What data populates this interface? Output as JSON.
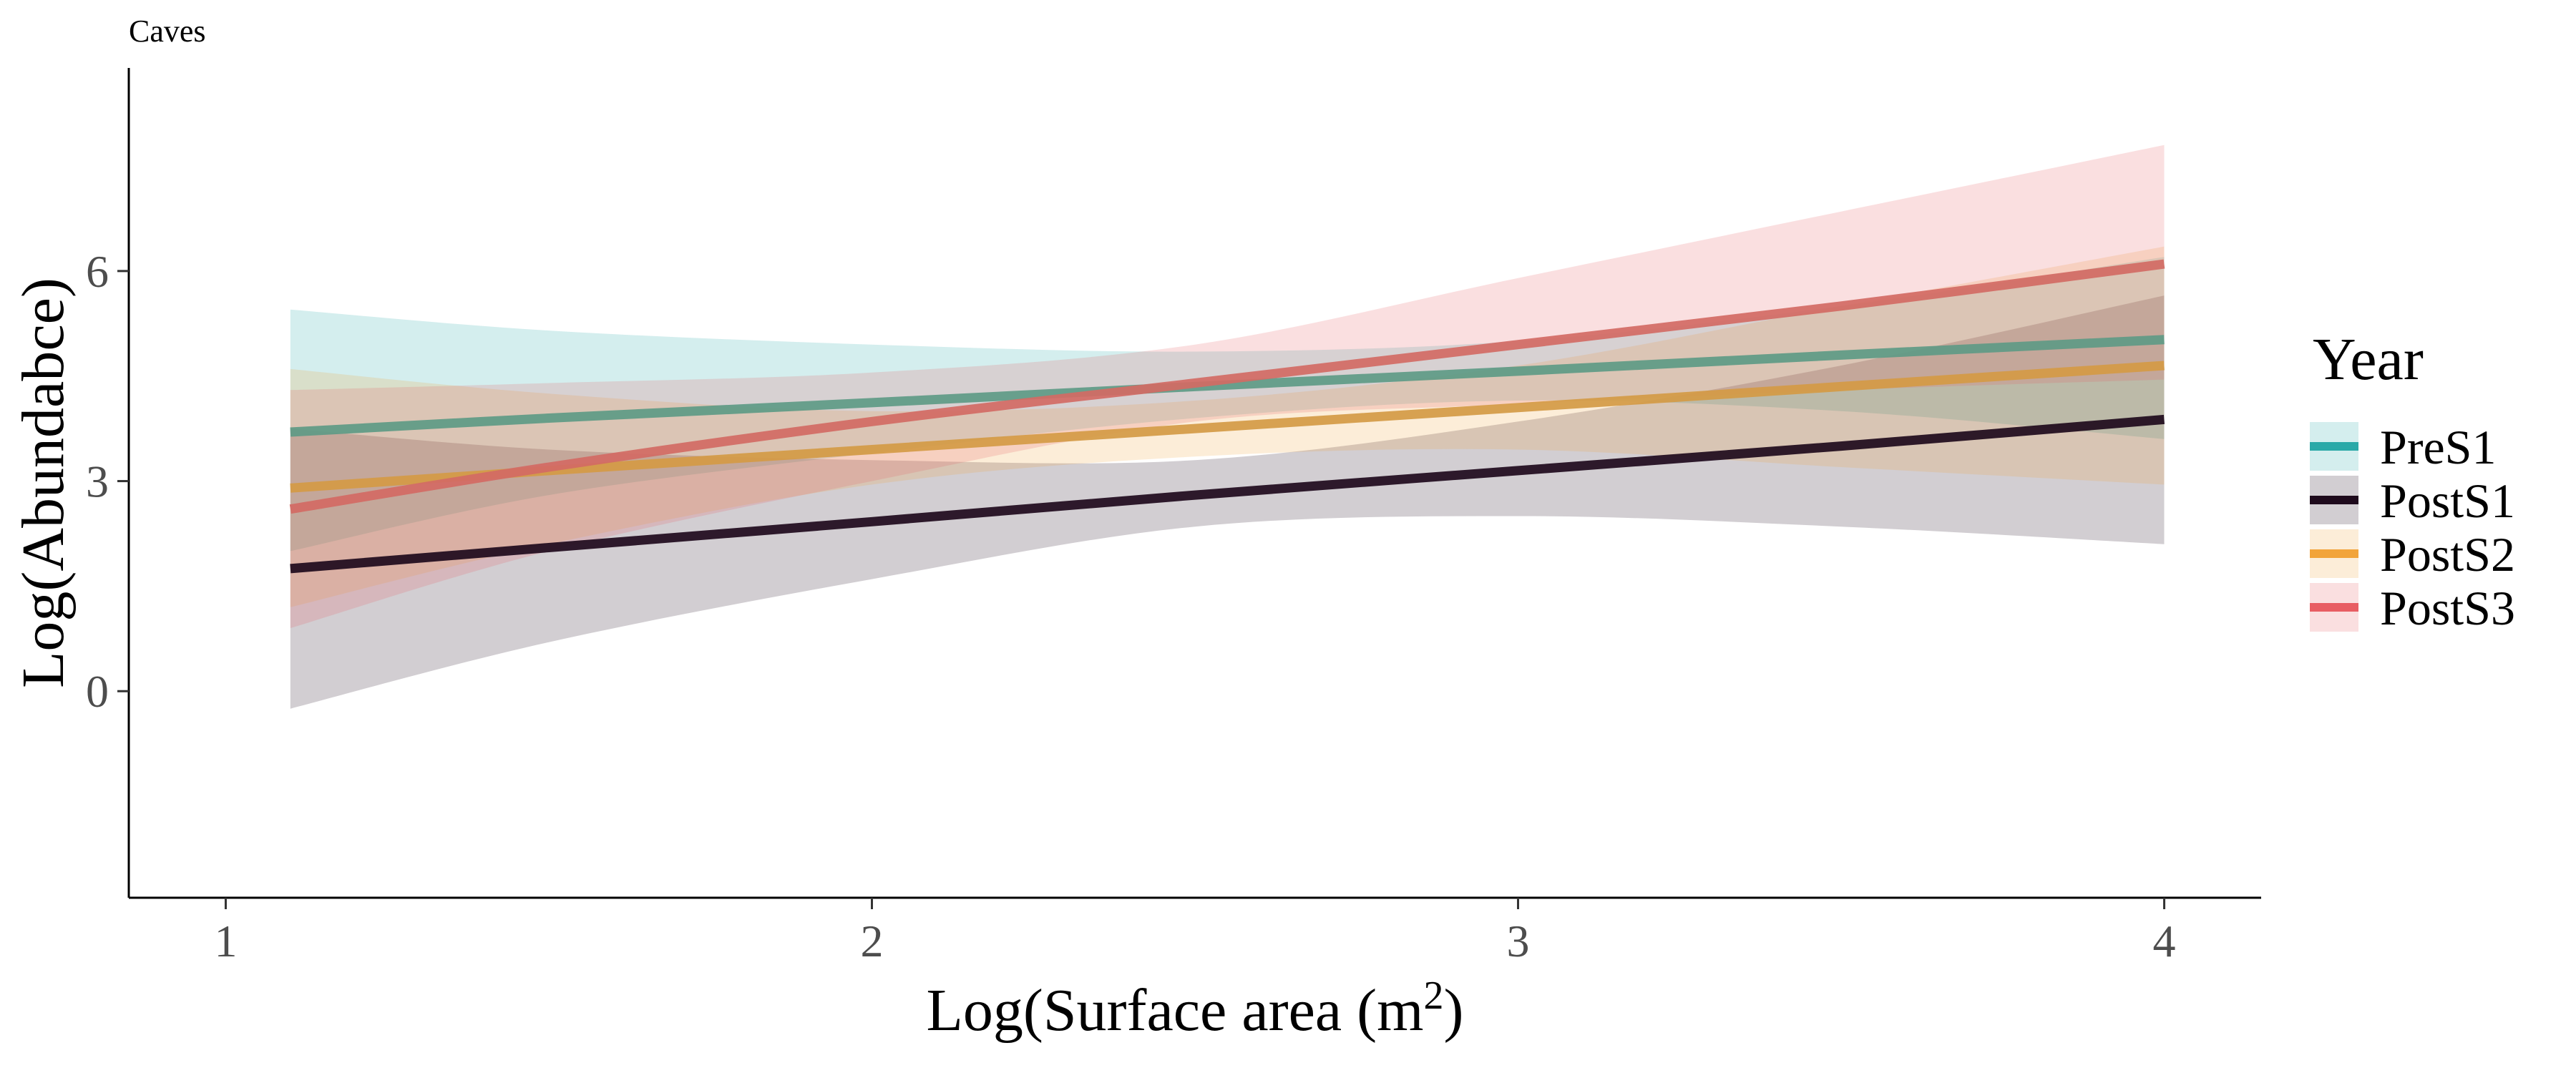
{
  "chart_data": {
    "type": "line",
    "title": "Caves",
    "xlabel": "Log(Surface area (m",
    "xlabel_superscript": "2",
    "xlabel_suffix": ")",
    "ylabel": "Log(Abundabce)",
    "xlim": [
      0.85,
      4.15
    ],
    "ylim": [
      -2.95,
      8.9
    ],
    "x_ticks": [
      1,
      2,
      3,
      4
    ],
    "y_ticks": [
      0,
      3,
      6
    ],
    "grid": false,
    "legend": {
      "title": "Year",
      "position": "right"
    },
    "series": [
      {
        "name": "PreS1",
        "color": "#2aa9a8",
        "line_color": "#5e9a86",
        "x": [
          1.1,
          1.5,
          2.0,
          2.5,
          3.0,
          3.5,
          4.0
        ],
        "y": [
          3.7,
          3.9,
          4.12,
          4.35,
          4.57,
          4.8,
          5.02
        ],
        "lower": [
          2.0,
          2.8,
          3.4,
          3.9,
          4.15,
          4.0,
          3.6
        ],
        "upper": [
          5.45,
          5.15,
          4.95,
          4.85,
          5.0,
          5.5,
          6.2
        ]
      },
      {
        "name": "PostS1",
        "color": "#1e0a1c",
        "line_color": "#1e0a1c",
        "x": [
          1.1,
          1.5,
          2.0,
          2.5,
          3.0,
          3.5,
          4.0
        ],
        "y": [
          1.75,
          2.05,
          2.42,
          2.8,
          3.15,
          3.5,
          3.88
        ],
        "lower": [
          -0.25,
          0.7,
          1.6,
          2.35,
          2.5,
          2.35,
          2.1
        ],
        "upper": [
          3.75,
          3.45,
          3.3,
          3.3,
          3.85,
          4.65,
          5.65
        ]
      },
      {
        "name": "PostS2",
        "color": "#f2a43a",
        "line_color": "#d49a45",
        "x": [
          1.1,
          1.5,
          2.0,
          2.5,
          3.0,
          3.5,
          4.0
        ],
        "y": [
          2.9,
          3.15,
          3.45,
          3.75,
          4.05,
          4.35,
          4.65
        ],
        "lower": [
          1.2,
          2.1,
          2.95,
          3.35,
          3.45,
          3.2,
          2.95
        ],
        "upper": [
          4.6,
          4.25,
          4.0,
          4.15,
          4.65,
          5.5,
          6.35
        ]
      },
      {
        "name": "PostS3",
        "color": "#e85d63",
        "line_color": "#d26a64",
        "x": [
          1.1,
          1.5,
          2.0,
          2.5,
          3.0,
          3.5,
          4.0
        ],
        "y": [
          2.6,
          3.2,
          3.85,
          4.4,
          4.95,
          5.5,
          6.1
        ],
        "lower": [
          0.9,
          2.0,
          3.0,
          3.85,
          4.1,
          4.3,
          4.45
        ],
        "upper": [
          4.3,
          4.4,
          4.55,
          4.95,
          5.9,
          6.85,
          7.8
        ]
      }
    ]
  }
}
